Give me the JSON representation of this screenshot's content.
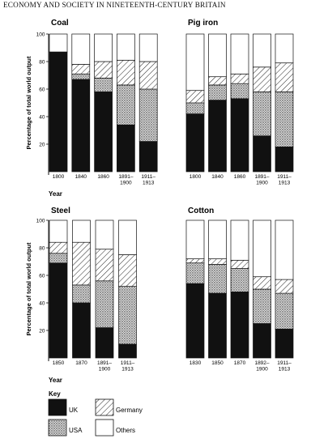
{
  "page": {
    "header": "ECONOMY AND SOCIETY IN NINETEENTH-CENTURY BRITAIN"
  },
  "chart_data": [
    {
      "type": "bar",
      "stacked": true,
      "title": "Coal",
      "ylabel": "Percentage of total world output",
      "xlabel": "Year",
      "ylim": [
        0,
        100
      ],
      "yticks": [
        20,
        40,
        60,
        80,
        100
      ],
      "categories": [
        "1800",
        "1840",
        "1860",
        "1891–\n1900",
        "1911–\n1913"
      ],
      "series": [
        {
          "name": "UK",
          "values": [
            87,
            67,
            58,
            34,
            22
          ]
        },
        {
          "name": "USA",
          "values": [
            0,
            4,
            10,
            29,
            38
          ]
        },
        {
          "name": "Germany",
          "values": [
            0,
            7,
            12,
            18,
            20
          ]
        },
        {
          "name": "Others",
          "values": [
            13,
            22,
            20,
            19,
            20
          ]
        }
      ]
    },
    {
      "type": "bar",
      "stacked": true,
      "title": "Pig iron",
      "ylim": [
        0,
        100
      ],
      "categories": [
        "1800",
        "1840",
        "1860",
        "1891–\n1900",
        "1911–\n1913"
      ],
      "series": [
        {
          "name": "UK",
          "values": [
            42,
            52,
            53,
            26,
            18
          ]
        },
        {
          "name": "USA",
          "values": [
            8,
            11,
            11,
            32,
            40
          ]
        },
        {
          "name": "Germany",
          "values": [
            9,
            6,
            7,
            18,
            21
          ]
        },
        {
          "name": "Others",
          "values": [
            41,
            31,
            29,
            24,
            21
          ]
        }
      ]
    },
    {
      "type": "bar",
      "stacked": true,
      "title": "Steel",
      "ylabel": "Percentage of total world output",
      "xlabel": "Year",
      "ylim": [
        0,
        100
      ],
      "yticks": [
        20,
        40,
        60,
        80,
        100
      ],
      "categories": [
        "1850",
        "1870",
        "1891–\n1900",
        "1911–\n1913"
      ],
      "series": [
        {
          "name": "UK",
          "values": [
            69,
            40,
            22,
            10
          ]
        },
        {
          "name": "USA",
          "values": [
            7,
            13,
            34,
            42
          ]
        },
        {
          "name": "Germany",
          "values": [
            8,
            31,
            23,
            23
          ]
        },
        {
          "name": "Others",
          "values": [
            16,
            16,
            21,
            25
          ]
        }
      ]
    },
    {
      "type": "bar",
      "stacked": true,
      "title": "Cotton",
      "ylim": [
        0,
        100
      ],
      "categories": [
        "1830",
        "1850",
        "1870",
        "1892–\n1900",
        "1911–\n1913"
      ],
      "series": [
        {
          "name": "UK",
          "values": [
            54,
            47,
            48,
            25,
            21
          ]
        },
        {
          "name": "USA",
          "values": [
            15,
            21,
            17,
            25,
            26
          ]
        },
        {
          "name": "Germany",
          "values": [
            3,
            4,
            6,
            9,
            10
          ]
        },
        {
          "name": "Others",
          "values": [
            28,
            28,
            29,
            41,
            43
          ]
        }
      ]
    }
  ],
  "key": {
    "title": "Key",
    "items": [
      {
        "label": "UK",
        "pattern": "solid"
      },
      {
        "label": "Germany",
        "pattern": "hatch"
      },
      {
        "label": "USA",
        "pattern": "dots"
      },
      {
        "label": "Others",
        "pattern": "white"
      }
    ]
  }
}
